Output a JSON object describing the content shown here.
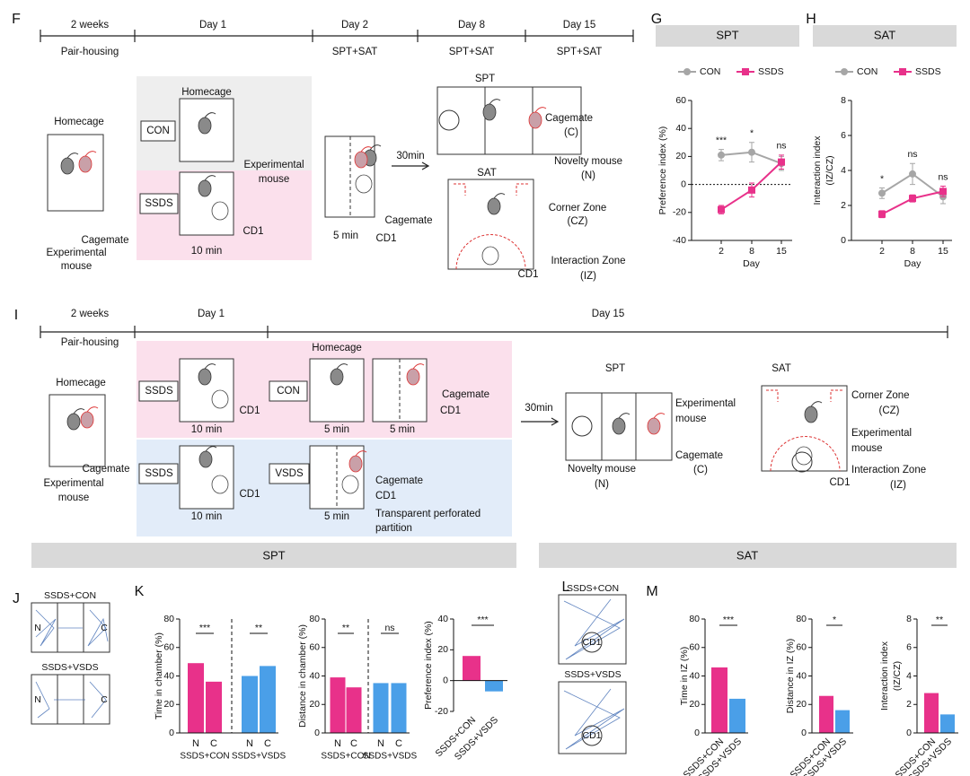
{
  "panel_letters": [
    "F",
    "G",
    "H",
    "I",
    "J",
    "K",
    "L",
    "M"
  ],
  "panel_F": [
    "2 weeks",
    "Day 1",
    "Day 2",
    "Day 8",
    "Day 15",
    "Pair-housing",
    "SPT+SAT",
    "SPT+SAT",
    "SPT+SAT",
    "Homecage",
    "Cagemate",
    "Experimental",
    "mouse",
    "Homecage",
    "CON",
    "Experimental",
    "mouse",
    "SSDS",
    "CD1",
    "10 min",
    "5 min",
    "Cagemate",
    "CD1",
    "30min",
    "SPT",
    "Cagemate",
    "(C)",
    "Novelty mouse",
    "(N)",
    "SAT",
    "Corner Zone",
    "(CZ)",
    "Interaction Zone",
    "(IZ)",
    "CD1"
  ],
  "panel_I": [
    "2 weeks",
    "Day 1",
    "Day 15",
    "Pair-housing",
    "Homecage",
    "Cagemate",
    "Experimental",
    "mouse",
    "SSDS",
    "CD1",
    "10 min",
    "Homecage",
    "CON",
    "5 min",
    "Cagemate",
    "CD1",
    "5 min",
    "SSDS",
    "CD1",
    "10 min",
    "VSDS",
    "Cagemate",
    "CD1",
    "5 min",
    "Transparent perforated",
    "partition",
    "30min",
    "SPT",
    "Experimental",
    "mouse",
    "Cagemate",
    "(C)",
    "Novelty mouse",
    "(N)",
    "SAT",
    "Corner Zone",
    "(CZ)",
    "Experimental",
    "mouse",
    "Interaction Zone",
    "(IZ)",
    "CD1"
  ],
  "section_headers": [
    "SPT",
    "SAT"
  ],
  "panel_J": [
    "SSDS+CON",
    "SSDS+VSDS",
    "N",
    "C",
    "N",
    "C"
  ],
  "panel_L": [
    "SSDS+CON",
    "SSDS+VSDS",
    "CD1",
    "CD1"
  ],
  "chart_data": [
    {
      "type": "line",
      "title": "SPT",
      "categories": [
        "2",
        "8",
        "15"
      ],
      "xlabel": "Day",
      "ylabel": [
        "Preference index (%)"
      ],
      "ylim": [
        -40,
        60
      ],
      "yticks": [
        -40,
        -20,
        0,
        20,
        40,
        60
      ],
      "series": [
        {
          "name": "CON",
          "color": "#a6a6a6",
          "values": [
            21,
            23,
            15
          ],
          "errors": [
            4,
            7,
            5
          ]
        },
        {
          "name": "SSDS",
          "color": "#e8318a",
          "values": [
            -18,
            -4,
            16
          ],
          "errors": [
            3,
            5,
            5
          ]
        }
      ],
      "annotations": [
        "***",
        "*",
        "ns"
      ]
    },
    {
      "type": "line",
      "title": "SAT",
      "categories": [
        "2",
        "8",
        "15"
      ],
      "xlabel": "Day",
      "ylabel": [
        "Interaction index",
        "(IZ/CZ)"
      ],
      "ylim": [
        0,
        8
      ],
      "yticks": [
        0,
        2,
        4,
        6,
        8
      ],
      "series": [
        {
          "name": "CON",
          "color": "#a6a6a6",
          "values": [
            2.7,
            3.8,
            2.5
          ],
          "errors": [
            0.3,
            0.6,
            0.4
          ]
        },
        {
          "name": "SSDS",
          "color": "#e8318a",
          "values": [
            1.5,
            2.4,
            2.8
          ],
          "errors": [
            0.2,
            0.2,
            0.3
          ]
        }
      ],
      "annotations": [
        "*",
        "ns",
        "ns"
      ]
    },
    {
      "type": "bar",
      "categories": [
        "N",
        "C",
        "N",
        "C"
      ],
      "groups": [
        "SSDS+CON",
        "SSDS+VSDS"
      ],
      "colors": [
        "#e8318a",
        "#e8318a",
        "#4a9fe8",
        "#4a9fe8"
      ],
      "values": [
        49,
        36,
        40,
        47
      ],
      "ylabel": [
        "Time in chamber (%)"
      ],
      "ylim": [
        0,
        80
      ],
      "yticks": [
        0,
        20,
        40,
        60,
        80
      ],
      "annotations": [
        "***",
        "**"
      ]
    },
    {
      "type": "bar",
      "categories": [
        "N",
        "C",
        "N",
        "C"
      ],
      "groups": [
        "SSDS+CON",
        "SSDS+VSDS"
      ],
      "colors": [
        "#e8318a",
        "#e8318a",
        "#4a9fe8",
        "#4a9fe8"
      ],
      "values": [
        39,
        32,
        35,
        35
      ],
      "ylabel": [
        "Distance in chamber (%)"
      ],
      "ylim": [
        0,
        80
      ],
      "yticks": [
        0,
        20,
        40,
        60,
        80
      ],
      "annotations": [
        "**",
        "ns"
      ]
    },
    {
      "type": "bar",
      "categories": [
        "SSDS+CON",
        "SSDS+VSDS"
      ],
      "colors": [
        "#e8318a",
        "#4a9fe8"
      ],
      "values": [
        16,
        -7
      ],
      "ylabel": [
        "Preference index (%)"
      ],
      "ylim": [
        -20,
        40
      ],
      "yticks": [
        -20,
        0,
        20,
        40
      ],
      "annotations": [
        "***"
      ]
    },
    {
      "type": "bar",
      "categories": [
        "SSDS+CON",
        "SSDS+VSDS"
      ],
      "colors": [
        "#e8318a",
        "#4a9fe8"
      ],
      "values": [
        46,
        24
      ],
      "ylabel": [
        "Time in IZ (%)"
      ],
      "ylim": [
        0,
        80
      ],
      "yticks": [
        0,
        20,
        40,
        60,
        80
      ],
      "annotations": [
        "***"
      ]
    },
    {
      "type": "bar",
      "categories": [
        "SSDS+CON",
        "SSDS+VSDS"
      ],
      "colors": [
        "#e8318a",
        "#4a9fe8"
      ],
      "values": [
        26,
        16
      ],
      "ylabel": [
        "Distance in IZ (%)"
      ],
      "ylim": [
        0,
        80
      ],
      "yticks": [
        0,
        20,
        40,
        60,
        80
      ],
      "annotations": [
        "*"
      ]
    },
    {
      "type": "bar",
      "categories": [
        "SSDS+CON",
        "SSDS+VSDS"
      ],
      "colors": [
        "#e8318a",
        "#4a9fe8"
      ],
      "values": [
        2.8,
        1.3
      ],
      "ylabel": [
        "Interaction index",
        "(IZ/CZ)"
      ],
      "ylim": [
        0,
        8
      ],
      "yticks": [
        0,
        2,
        4,
        6,
        8
      ],
      "annotations": [
        "**"
      ]
    }
  ]
}
